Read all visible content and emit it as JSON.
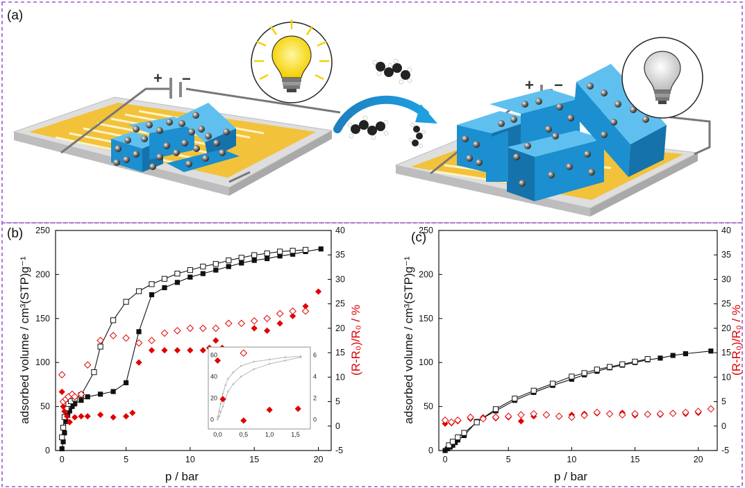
{
  "panels": {
    "a": {
      "label": "(a)"
    },
    "b": {
      "label": "(b)"
    },
    "c": {
      "label": "(c)"
    }
  },
  "illustration": {
    "left_device": {
      "polarity_plus": "+",
      "polarity_minus": "−",
      "bulb_state": "lit"
    },
    "right_device": {
      "polarity_plus": "+",
      "polarity_minus": "−",
      "bulb_state": "off"
    },
    "arrow": "adsorption-arrow",
    "icons": [
      "lightbulb-on-icon",
      "lightbulb-off-icon",
      "molecule-icon",
      "curved-arrow-icon"
    ],
    "colors": {
      "crystal": "#1f9ad6",
      "electrode": "#f3c33a",
      "substrate": "#d8d8d8",
      "nanoparticle": "#444444",
      "bulb_on": "#f8d800"
    }
  },
  "chart_data": [
    {
      "id": "b",
      "type": "scatter",
      "xlabel": "p / bar",
      "ylabel": "adsorbed volume / cm³(STP)g⁻¹",
      "y2label": "(R-R₀)/R₀ / %",
      "xlim": [
        -0.5,
        21
      ],
      "ylim": [
        0,
        250
      ],
      "y2lim": [
        -5,
        40
      ],
      "xticks": [
        0,
        5,
        10,
        15,
        20
      ],
      "yticks": [
        0,
        50,
        100,
        150,
        200,
        250
      ],
      "y2ticks": [
        -5,
        0,
        5,
        10,
        15,
        20,
        25,
        30,
        35,
        40
      ],
      "colors": {
        "adsorption": "#111111",
        "sensor": "#e00000"
      },
      "series": [
        {
          "axis": "left",
          "marker": "square-filled",
          "line": true,
          "color": "#111111",
          "x": [
            0,
            0.1,
            0.2,
            0.3,
            0.45,
            0.6,
            0.8,
            1.0,
            1.5,
            2.0,
            3.0,
            4.0,
            5.0,
            6.0,
            7.0,
            8.0,
            9.0,
            10.0,
            11.0,
            12.0,
            13.0,
            14.0,
            15.0,
            16.0,
            17.0,
            18.0,
            19.0,
            20.2
          ],
          "y": [
            2,
            10,
            20,
            33,
            40,
            45,
            50,
            53,
            57,
            61,
            64,
            67,
            77,
            135,
            177,
            185,
            191,
            197,
            201,
            205,
            209,
            213,
            216,
            218,
            221,
            223,
            226,
            229
          ]
        },
        {
          "axis": "left",
          "marker": "square-open",
          "line": true,
          "color": "#111111",
          "x": [
            0,
            0.1,
            0.2,
            0.35,
            0.5,
            0.7,
            1.0,
            1.5,
            2.5,
            3.0,
            4.0,
            5.0,
            6.0,
            7.0,
            8.0,
            9.0,
            10.0,
            11.0,
            12.0,
            13.0,
            14.0,
            15.0,
            16.0,
            17.0,
            18.0,
            19.0
          ],
          "y": [
            15,
            26,
            38,
            48,
            53,
            56,
            59,
            63,
            89,
            118,
            148,
            169,
            181,
            189,
            195,
            201,
            205,
            209,
            212,
            216,
            219,
            222,
            224,
            226,
            227,
            228
          ]
        },
        {
          "axis": "right",
          "marker": "diamond-filled",
          "line": false,
          "color": "#e00000",
          "x": [
            0,
            0.1,
            0.2,
            0.4,
            0.6,
            1.0,
            1.5,
            2.0,
            3.0,
            4.0,
            5.0,
            5.5,
            6.0,
            7.0,
            8.0,
            9.0,
            10.0,
            11.0,
            11.5,
            12.0,
            12.5,
            13.0,
            15.0,
            16.0,
            17.0,
            18.0,
            19.0,
            20.0
          ],
          "y": [
            7.0,
            4.0,
            3.0,
            2.0,
            0.8,
            1.8,
            2.0,
            2.0,
            2.3,
            1.8,
            2.0,
            2.7,
            13.0,
            15.5,
            15.5,
            15.5,
            15.5,
            15.5,
            16.0,
            17.5,
            16.0,
            15.5,
            20.0,
            19.5,
            21.0,
            22.5,
            24.5,
            27.5
          ]
        },
        {
          "axis": "right",
          "marker": "diamond-open",
          "line": false,
          "color": "#e00000",
          "x": [
            0,
            0.1,
            0.3,
            0.5,
            0.8,
            1.0,
            1.5,
            2.0,
            3.0,
            4.0,
            5.0,
            6.0,
            7.0,
            8.0,
            9.0,
            10.0,
            11.0,
            12.0,
            13.0,
            14.0,
            15.0,
            16.0,
            17.0,
            18.0,
            19.0
          ],
          "y": [
            10.5,
            5.0,
            5.5,
            6.0,
            6.5,
            6.0,
            6.5,
            12.5,
            17.5,
            18.5,
            18.0,
            17.0,
            17.5,
            19.0,
            19.5,
            20.0,
            20.0,
            20.0,
            21.0,
            21.0,
            21.5,
            22.0,
            23.0,
            23.5,
            23.5
          ]
        }
      ],
      "inset": {
        "xlim": [
          -0.1,
          1.6
        ],
        "ylim": [
          -5,
          65
        ],
        "y2lim": [
          -0.5,
          6.5
        ],
        "xticks": [
          "0,0",
          "0,5",
          "1,0",
          "1,5"
        ],
        "yticks": [
          "0",
          "20",
          "40",
          "60"
        ],
        "y2ticks": [
          "0",
          "2",
          "4",
          "6"
        ],
        "series": [
          {
            "axis": "left",
            "marker": "gray-line",
            "color": "#b8b8b8",
            "x": [
              0,
              0.03,
              0.06,
              0.1,
              0.15,
              0.2,
              0.3,
              0.45,
              0.7,
              1.0,
              1.3,
              1.6
            ],
            "y": [
              2,
              8,
              15,
              24,
              32,
              38,
              44,
              50,
              54,
              56,
              58,
              59
            ]
          },
          {
            "axis": "left",
            "marker": "gray-line",
            "color": "#b8b8b8",
            "x": [
              0,
              0.03,
              0.06,
              0.1,
              0.15,
              0.2,
              0.3,
              0.45,
              0.7,
              1.0,
              1.3,
              1.6
            ],
            "y": [
              0,
              3,
              7,
              12,
              19,
              26,
              33,
              40,
              47,
              52,
              55,
              58
            ]
          },
          {
            "axis": "right",
            "marker": "diamond-filled",
            "color": "#e00000",
            "x": [
              0.0,
              0.1,
              0.5,
              1.0,
              1.55
            ],
            "y": [
              5.5,
              1.9,
              -0.1,
              0.9,
              1.0
            ]
          },
          {
            "axis": "right",
            "marker": "diamond-open",
            "color": "#e00000",
            "x": [
              0.5
            ],
            "y": [
              6.2
            ]
          }
        ]
      }
    },
    {
      "id": "c",
      "type": "scatter",
      "xlabel": "p / bar",
      "ylabel": "adsorbed volume / cm³(STP)g⁻¹",
      "y2label": "(R-R₀)/R₀ / %",
      "xlim": [
        -0.5,
        21.5
      ],
      "ylim": [
        0,
        250
      ],
      "y2lim": [
        -5,
        40
      ],
      "xticks": [
        0,
        5,
        10,
        15,
        20
      ],
      "yticks": [
        0,
        50,
        100,
        150,
        200,
        250
      ],
      "y2ticks": [
        -5,
        0,
        5,
        10,
        15,
        20,
        25,
        30,
        35,
        40
      ],
      "series": [
        {
          "axis": "left",
          "marker": "square-filled",
          "line": true,
          "color": "#111111",
          "x": [
            0,
            0.2,
            0.4,
            0.6,
            0.8,
            1.0,
            1.5,
            2.5,
            4.0,
            5.5,
            7.0,
            8.5,
            10.0,
            11.0,
            12.0,
            13.0,
            14.0,
            15.0,
            16.0,
            17.0,
            18.0,
            19.0,
            21.0
          ],
          "y": [
            0,
            2,
            4,
            6,
            9,
            12,
            17,
            33,
            45,
            57,
            66,
            74,
            81,
            86,
            90,
            94,
            97,
            100,
            103,
            105,
            108,
            110,
            113
          ]
        },
        {
          "axis": "left",
          "marker": "square-open",
          "line": true,
          "color": "#111111",
          "x": [
            0.3,
            0.6,
            1.0,
            1.5,
            2.5,
            4.0,
            5.5,
            7.0,
            8.5,
            10.0,
            11.0,
            12.0,
            13.0,
            14.0,
            15.0,
            16.0
          ],
          "y": [
            6,
            10,
            15,
            20,
            32,
            47,
            59,
            68,
            76,
            84,
            88,
            92,
            95,
            98,
            101,
            104
          ]
        },
        {
          "axis": "right",
          "marker": "diamond-filled",
          "line": false,
          "color": "#e00000",
          "x": [
            0,
            0.5,
            1.0,
            2.0,
            3.0,
            4.0,
            5.0,
            6.0,
            7.0,
            8.0,
            9.0,
            10.0,
            11.0,
            12.0,
            13.0,
            14.0,
            15.0,
            16.0,
            17.0,
            18.0,
            19.0,
            20.0
          ],
          "y": [
            0.5,
            0.6,
            1.0,
            1.5,
            1.8,
            1.6,
            1.8,
            1.0,
            2.0,
            2.2,
            2.0,
            2.3,
            2.5,
            2.6,
            2.5,
            2.7,
            2.2,
            2.4,
            2.3,
            2.6,
            2.5,
            2.7
          ]
        },
        {
          "axis": "right",
          "marker": "diamond-open",
          "line": false,
          "color": "#e00000",
          "x": [
            0,
            0.5,
            1.0,
            2.0,
            3.0,
            4.0,
            5.0,
            6.0,
            7.0,
            8.0,
            9.0,
            10.0,
            11.0,
            12.0,
            13.0,
            14.0,
            15.0,
            16.0,
            17.0,
            18.0,
            19.0,
            20.0,
            21.0
          ],
          "y": [
            1.2,
            0.8,
            1.2,
            1.8,
            1.5,
            1.8,
            2.0,
            2.3,
            2.5,
            2.3,
            2.0,
            1.8,
            2.2,
            2.8,
            2.5,
            2.3,
            2.5,
            2.4,
            2.5,
            2.6,
            2.8,
            3.0,
            3.5
          ]
        }
      ]
    }
  ]
}
